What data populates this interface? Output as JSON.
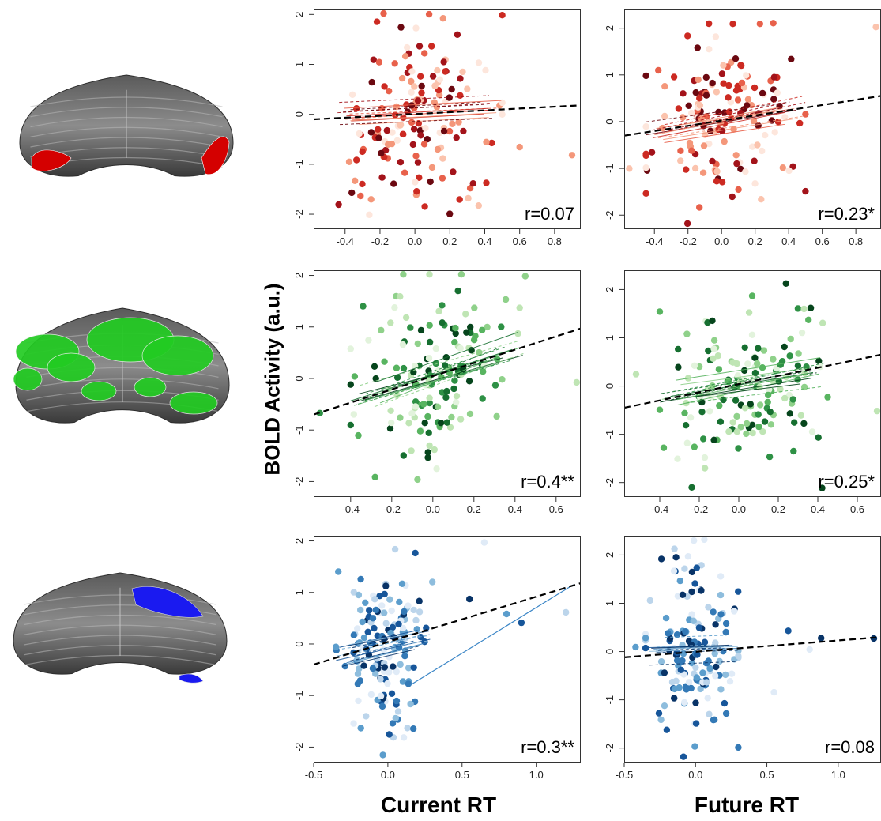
{
  "ylabel": "BOLD Activity (a.u.)",
  "col_labels": [
    "Current RT",
    "Future RT"
  ],
  "brain_views": [
    {
      "name": "cerebellum-red",
      "highlight": "#d40000"
    },
    {
      "name": "cerebellum-green",
      "highlight": "#22cc22"
    },
    {
      "name": "cerebellum-blue",
      "highlight": "#1a1af0"
    }
  ],
  "chart_data": [
    {
      "type": "scatter",
      "row": 0,
      "col": 0,
      "palette": "red",
      "r_label": "r=0.07",
      "xlim": [
        -0.58,
        0.95
      ],
      "ylim": [
        -2.3,
        2.1
      ],
      "xticks": [
        "-0.4",
        "-0.2",
        "0.0",
        "0.2",
        "0.4",
        "0.6",
        "0.8"
      ],
      "xtick_values": [
        -0.4,
        -0.2,
        0.0,
        0.2,
        0.4,
        0.6,
        0.8
      ],
      "yticks": [
        "-2",
        "-1",
        "0",
        "1",
        "2"
      ],
      "ytick_values": [
        -2,
        -1,
        0,
        1,
        2
      ],
      "fit": {
        "x": [
          -0.58,
          0.95
        ],
        "y": [
          -0.1,
          0.18
        ]
      },
      "xmin": -0.45,
      "xmax": 0.5,
      "xtail": [
        0.6,
        0.9
      ],
      "slope": 0.2,
      "intercept": 0.0,
      "spread": 0.95,
      "seed": 11
    },
    {
      "type": "scatter",
      "row": 0,
      "col": 1,
      "palette": "red",
      "r_label": "r=0.23*",
      "xlim": [
        -0.58,
        0.95
      ],
      "ylim": [
        -2.3,
        2.4
      ],
      "xticks": [
        "-0.4",
        "-0.2",
        "0.0",
        "0.2",
        "0.4",
        "0.6",
        "0.8"
      ],
      "xtick_values": [
        -0.4,
        -0.2,
        0.0,
        0.2,
        0.4,
        0.6,
        0.8
      ],
      "yticks": [
        "-2",
        "-1",
        "0",
        "1",
        "2"
      ],
      "ytick_values": [
        -2,
        -1,
        0,
        1,
        2
      ],
      "fit": {
        "x": [
          -0.58,
          0.95
        ],
        "y": [
          -0.3,
          0.55
        ]
      },
      "xmin": -0.45,
      "xmax": 0.5,
      "xtail": [
        -0.55,
        0.92
      ],
      "slope": 0.6,
      "intercept": 0.0,
      "spread": 0.85,
      "seed": 23
    },
    {
      "type": "scatter",
      "row": 1,
      "col": 0,
      "palette": "green",
      "r_label": "r=0.4**",
      "xlim": [
        -0.58,
        0.72
      ],
      "ylim": [
        -2.3,
        2.1
      ],
      "xticks": [
        "-0.4",
        "-0.2",
        "0.0",
        "0.2",
        "0.4",
        "0.6"
      ],
      "xtick_values": [
        -0.4,
        -0.2,
        0.0,
        0.2,
        0.4,
        0.6
      ],
      "yticks": [
        "-2",
        "-1",
        "0",
        "1",
        "2"
      ],
      "ytick_values": [
        -2,
        -1,
        0,
        1,
        2
      ],
      "fit": {
        "x": [
          -0.58,
          0.72
        ],
        "y": [
          -0.7,
          0.97
        ]
      },
      "xmin": -0.4,
      "xmax": 0.45,
      "xtail": [
        -0.55,
        0.7
      ],
      "slope": 1.2,
      "intercept": 0.0,
      "spread": 0.85,
      "seed": 37
    },
    {
      "type": "scatter",
      "row": 1,
      "col": 1,
      "palette": "green",
      "r_label": "r=0.25*",
      "xlim": [
        -0.58,
        0.72
      ],
      "ylim": [
        -2.3,
        2.4
      ],
      "xticks": [
        "-0.4",
        "-0.2",
        "0.0",
        "0.2",
        "0.4",
        "0.6"
      ],
      "xtick_values": [
        -0.4,
        -0.2,
        0.0,
        0.2,
        0.4,
        0.6
      ],
      "yticks": [
        "-2",
        "-1",
        "0",
        "1",
        "2"
      ],
      "ytick_values": [
        -2,
        -1,
        0,
        1,
        2
      ],
      "fit": {
        "x": [
          -0.58,
          0.72
        ],
        "y": [
          -0.45,
          0.65
        ]
      },
      "xmin": -0.4,
      "xmax": 0.45,
      "xtail": [
        -0.52,
        0.7
      ],
      "slope": 0.7,
      "intercept": 0.0,
      "spread": 0.85,
      "seed": 41
    },
    {
      "type": "scatter",
      "row": 2,
      "col": 0,
      "palette": "blue",
      "r_label": "r=0.3**",
      "xlim": [
        -0.5,
        1.3
      ],
      "ylim": [
        -2.3,
        2.1
      ],
      "xticks": [
        "-0.5",
        "0.0",
        "0.5",
        "1.0"
      ],
      "xtick_values": [
        -0.5,
        0.0,
        0.5,
        1.0
      ],
      "yticks": [
        "-2",
        "-1",
        "0",
        "1",
        "2"
      ],
      "ytick_values": [
        -2,
        -1,
        0,
        1,
        2
      ],
      "fit": {
        "x": [
          -0.5,
          1.3
        ],
        "y": [
          -0.4,
          1.18
        ]
      },
      "xmin": -0.35,
      "xmax": 0.3,
      "xtail": [
        0.55,
        0.65,
        0.8,
        0.9,
        1.2
      ],
      "slope": 0.6,
      "intercept": 0.0,
      "spread": 0.85,
      "seed": 53
    },
    {
      "type": "scatter",
      "row": 2,
      "col": 1,
      "palette": "blue",
      "r_label": "r=0.08",
      "xlim": [
        -0.5,
        1.3
      ],
      "ylim": [
        -2.3,
        2.4
      ],
      "xticks": [
        "-0.5",
        "0.0",
        "0.5",
        "1.0"
      ],
      "xtick_values": [
        -0.5,
        0.0,
        0.5,
        1.0
      ],
      "yticks": [
        "-2",
        "-1",
        "0",
        "1",
        "2"
      ],
      "ytick_values": [
        -2,
        -1,
        0,
        1,
        2
      ],
      "fit": {
        "x": [
          -0.5,
          1.3
        ],
        "y": [
          -0.12,
          0.3
        ]
      },
      "xmin": -0.35,
      "xmax": 0.3,
      "xtail": [
        -0.42,
        0.55,
        0.65,
        0.8,
        0.88,
        1.25
      ],
      "slope": 0.1,
      "intercept": 0.0,
      "spread": 0.85,
      "seed": 67
    }
  ]
}
